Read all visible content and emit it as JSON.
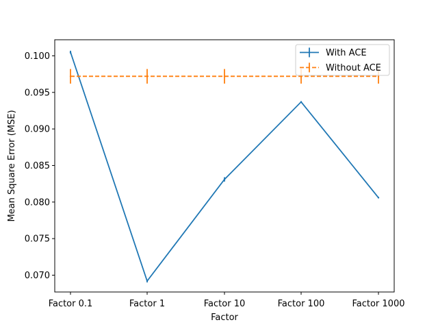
{
  "chart_data": {
    "type": "line",
    "title": "",
    "xlabel": "Factor",
    "ylabel": "Mean Square Error (MSE)",
    "categories": [
      "Factor 0.1",
      "Factor 1",
      "Factor 10",
      "Factor 100",
      "Factor 1000"
    ],
    "ylim": [
      0.0677,
      0.1022
    ],
    "yticks": [
      0.07,
      0.075,
      0.08,
      0.085,
      0.09,
      0.095,
      0.1
    ],
    "ytick_labels": [
      "0.070",
      "0.075",
      "0.080",
      "0.085",
      "0.090",
      "0.095",
      "0.100"
    ],
    "grid": false,
    "legend_position": "upper right",
    "series": [
      {
        "name": "With ACE",
        "color": "#1f77b4",
        "linestyle": "solid",
        "values": [
          0.1005,
          0.0692,
          0.0831,
          0.0937,
          0.0806
        ],
        "errors": [
          0.0002,
          0.0002,
          0.0003,
          0.0001,
          0.0001
        ]
      },
      {
        "name": "Without ACE",
        "color": "#ff7f0e",
        "linestyle": "dashed",
        "values": [
          0.0972,
          0.0972,
          0.0972,
          0.0972,
          0.0972
        ],
        "errors": [
          0.001,
          0.001,
          0.001,
          0.001,
          0.001
        ]
      }
    ]
  }
}
